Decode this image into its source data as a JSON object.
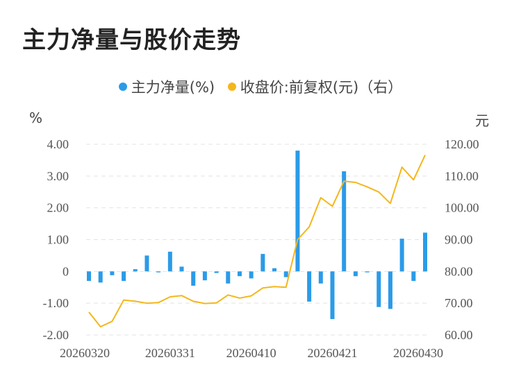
{
  "title": "主力净量与股价走势",
  "chart_data": {
    "type": "bar+line",
    "legend": [
      {
        "label": "主力净量(%)",
        "color": "#2b9be8"
      },
      {
        "label": "收盘价:前复权(元)（右）",
        "color": "#f4b71a"
      }
    ],
    "left_unit": "%",
    "right_unit": "元",
    "left_axis": {
      "ylim": [
        -2,
        4
      ],
      "ticks": [
        "4.00",
        "3.00",
        "2.00",
        "1.00",
        "0",
        "-1.00",
        "-2.00"
      ]
    },
    "right_axis": {
      "ylim": [
        60,
        120
      ],
      "ticks": [
        "120.00",
        "110.00",
        "100.00",
        "90.00",
        "80.00",
        "70.00",
        "60.00"
      ]
    },
    "x_tick_labels": [
      "20260320",
      "20260331",
      "20260410",
      "20260421",
      "20260430"
    ],
    "x_tick_indices": [
      0,
      7,
      14,
      21,
      28
    ],
    "grid": true,
    "series": [
      {
        "name": "主力净量(%)",
        "type": "bar",
        "values": [
          -0.3,
          -0.35,
          -0.12,
          -0.3,
          0.07,
          0.5,
          -0.03,
          0.62,
          0.15,
          -0.45,
          -0.28,
          -0.05,
          -0.38,
          -0.15,
          -0.22,
          0.55,
          0.1,
          -0.18,
          3.8,
          -0.95,
          -0.38,
          -1.5,
          3.15,
          -0.15,
          -0.03,
          -1.12,
          -1.18,
          1.03,
          -0.3,
          1.22
        ]
      },
      {
        "name": "收盘价:前复权(元)（右）",
        "type": "line",
        "values": [
          67.2,
          62.6,
          64.3,
          71.0,
          70.6,
          70.0,
          70.2,
          72.0,
          72.4,
          70.6,
          69.9,
          70.1,
          72.6,
          71.6,
          72.3,
          74.8,
          75.2,
          75.0,
          90.0,
          94.0,
          103.2,
          100.5,
          108.4,
          108.0,
          106.6,
          105.0,
          101.4,
          112.8,
          108.8,
          116.6
        ]
      }
    ]
  }
}
